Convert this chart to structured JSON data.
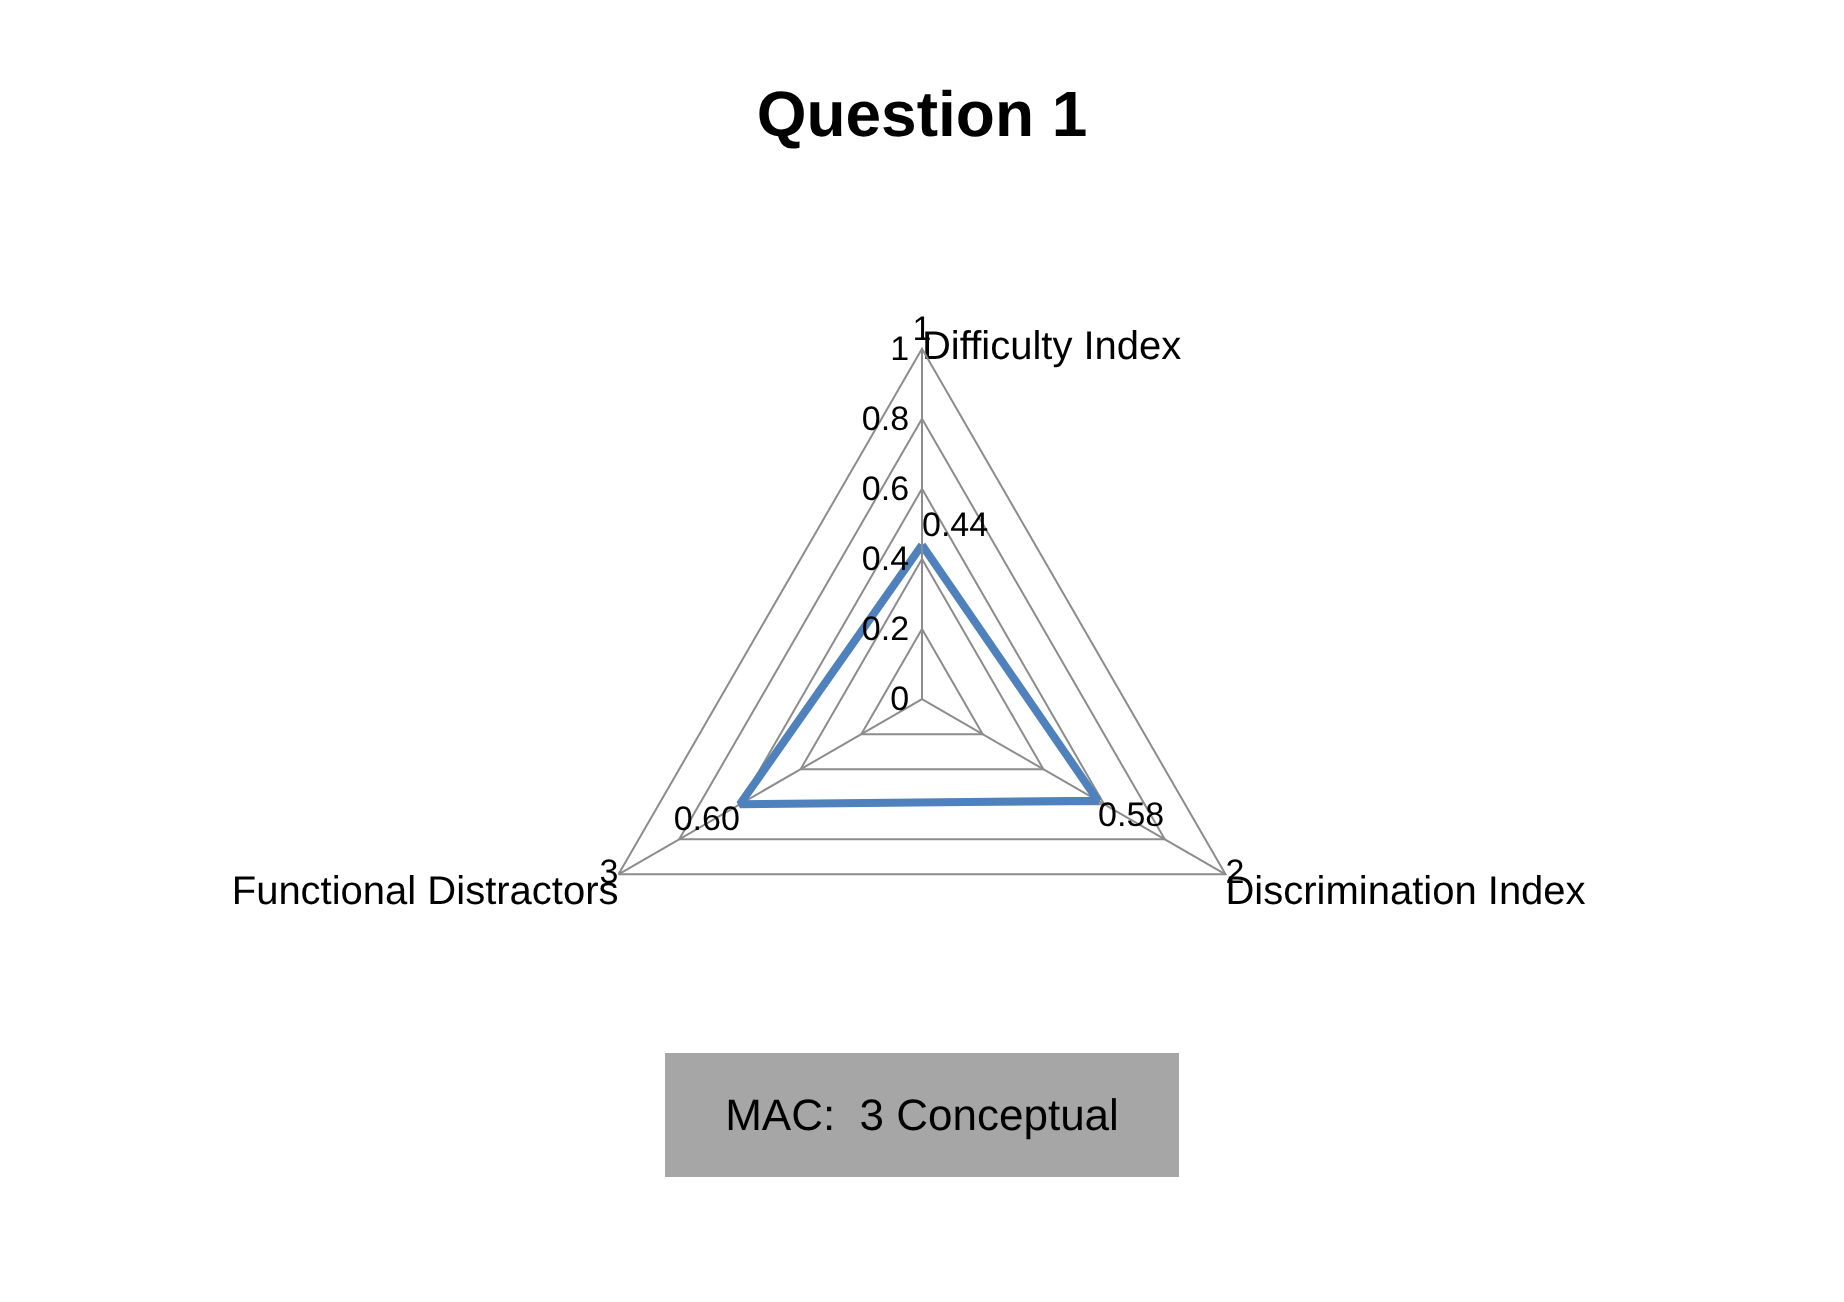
{
  "chart_data": {
    "type": "radar",
    "title": "Question 1",
    "categories": [
      "Difficulty Index",
      "Discrimination Index",
      "Functional Distractors"
    ],
    "series": [
      {
        "color": "#4f81bd",
        "values": [
          0.44,
          0.58,
          0.6
        ],
        "value_labels": [
          "0.44",
          "0.58",
          "0.60"
        ]
      }
    ],
    "ylim": [
      0,
      1
    ],
    "yticks": [
      0,
      0.2,
      0.4,
      0.6,
      0.8,
      1
    ],
    "grid": true,
    "marker": "none",
    "line_style": "solid",
    "annotations": [
      "1",
      "2",
      "3",
      "MAC:  3 Conceptual"
    ]
  }
}
